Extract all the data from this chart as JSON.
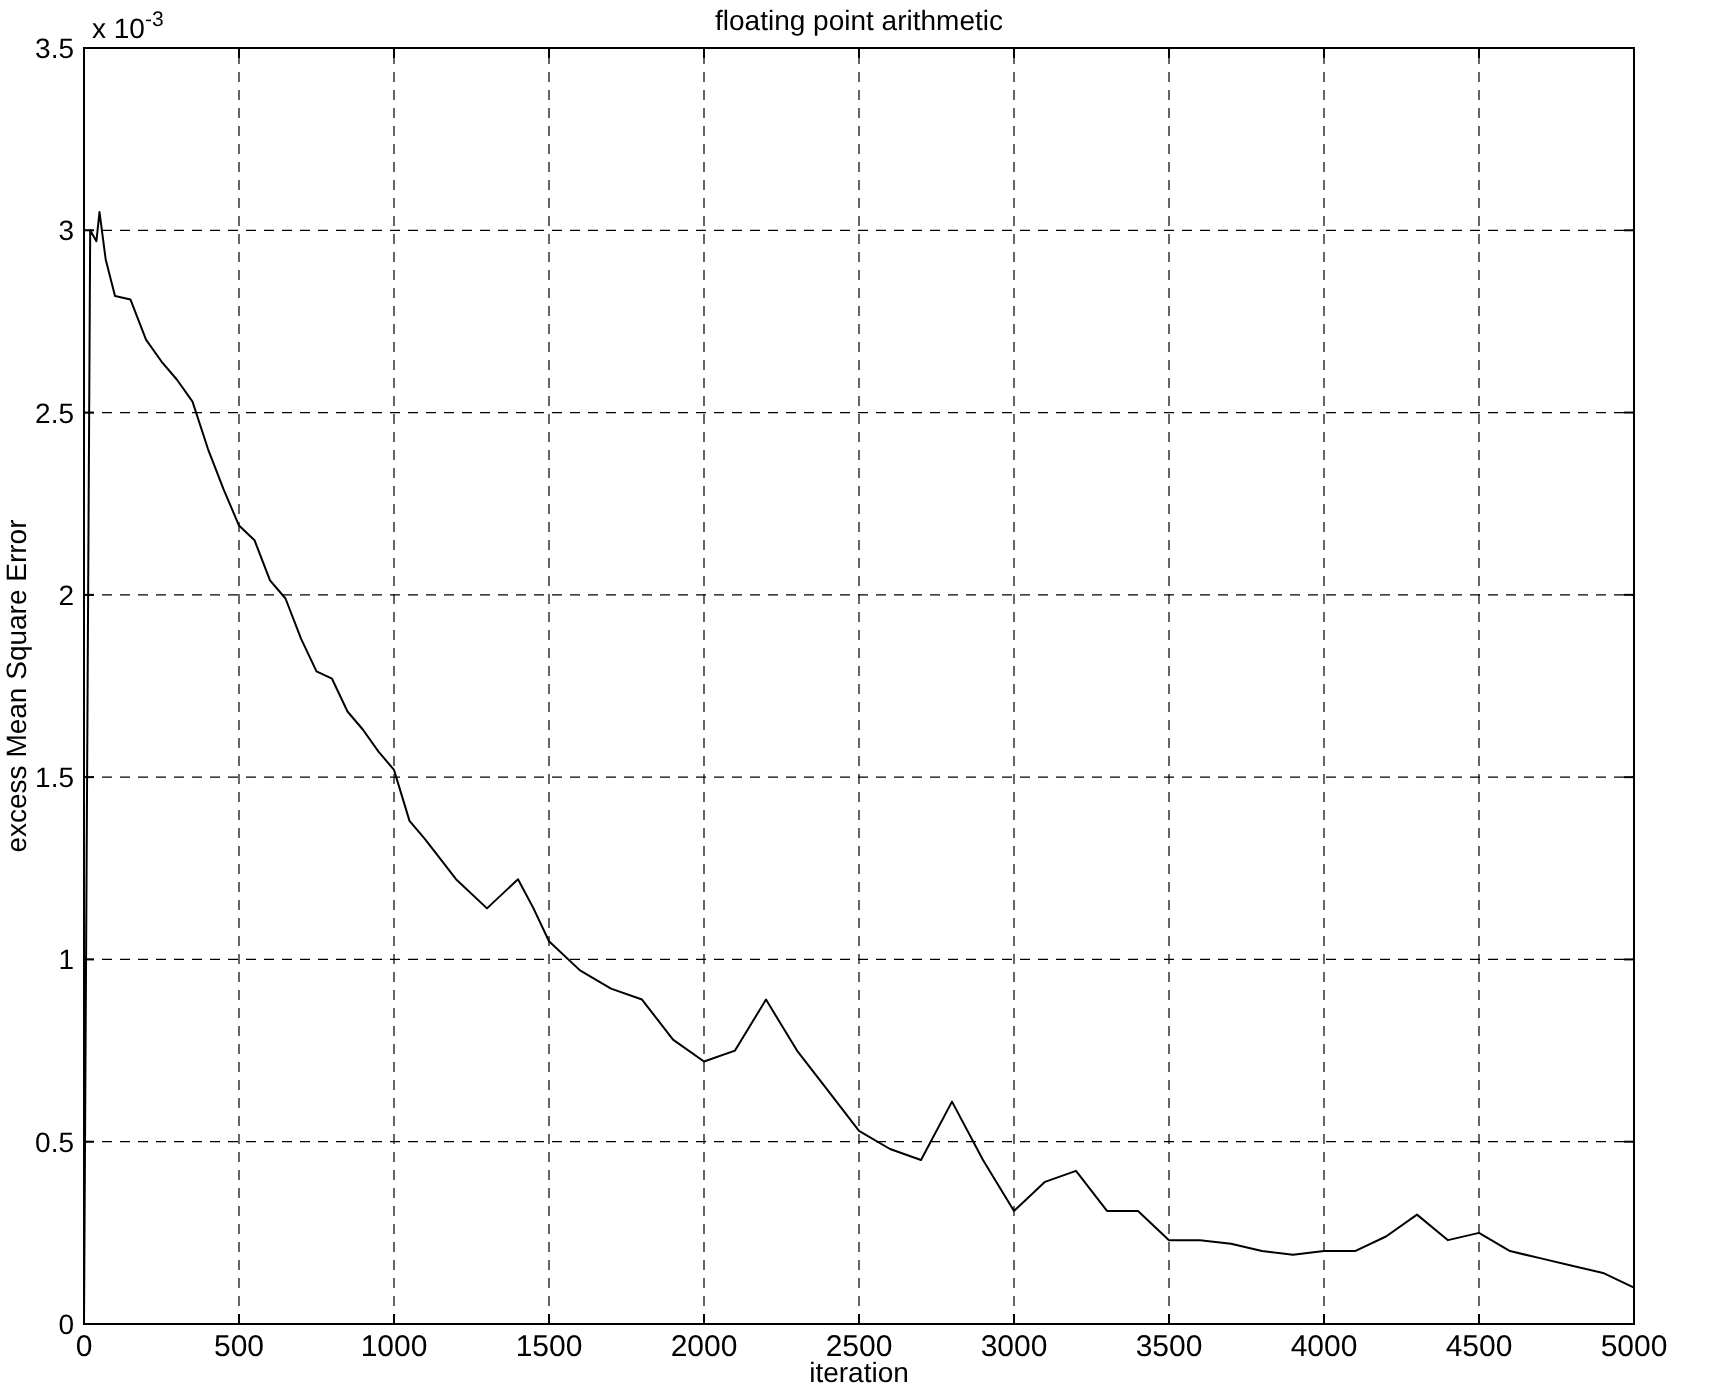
{
  "chart_data": {
    "type": "line",
    "title": "floating point arithmetic",
    "xlabel": "iteration",
    "ylabel": "excess Mean Square Error",
    "annotations": [
      "x 10$^{-3}$"
    ],
    "xlim": [
      0,
      5000
    ],
    "xticks": [
      0,
      500,
      1000,
      1500,
      2000,
      2500,
      3000,
      3500,
      4000,
      4500,
      5000
    ],
    "ylim": [
      0,
      3.5
    ],
    "yticks": [
      0,
      0.5,
      1,
      1.5,
      2,
      2.5,
      3,
      3.5
    ],
    "grid": true,
    "marker": "none",
    "line_style": "solid",
    "series": [
      {
        "color": "#000000",
        "x": [
          0,
          20,
          40,
          50,
          70,
          100,
          150,
          200,
          250,
          300,
          350,
          400,
          450,
          500,
          550,
          600,
          650,
          700,
          750,
          800,
          850,
          900,
          950,
          1000,
          1050,
          1100,
          1200,
          1300,
          1400,
          1450,
          1500,
          1600,
          1700,
          1800,
          1900,
          2000,
          2100,
          2200,
          2300,
          2400,
          2500,
          2600,
          2700,
          2800,
          2900,
          3000,
          3100,
          3200,
          3300,
          3400,
          3500,
          3600,
          3700,
          3800,
          3900,
          4000,
          4100,
          4200,
          4300,
          4400,
          4500,
          4600,
          4700,
          4800,
          4900,
          5000
        ],
        "values": [
          0,
          3.0,
          2.97,
          3.05,
          2.92,
          2.82,
          2.81,
          2.7,
          2.64,
          2.59,
          2.53,
          2.4,
          2.29,
          2.19,
          2.15,
          2.04,
          1.99,
          1.88,
          1.79,
          1.77,
          1.68,
          1.63,
          1.57,
          1.52,
          1.38,
          1.33,
          1.22,
          1.14,
          1.22,
          1.14,
          1.05,
          0.97,
          0.92,
          0.89,
          0.78,
          0.72,
          0.75,
          0.89,
          0.75,
          0.64,
          0.53,
          0.48,
          0.45,
          0.61,
          0.45,
          0.31,
          0.39,
          0.42,
          0.31,
          0.31,
          0.23,
          0.23,
          0.22,
          0.2,
          0.19,
          0.2,
          0.2,
          0.24,
          0.3,
          0.23,
          0.25,
          0.2,
          0.18,
          0.16,
          0.14,
          0.1
        ]
      }
    ]
  }
}
